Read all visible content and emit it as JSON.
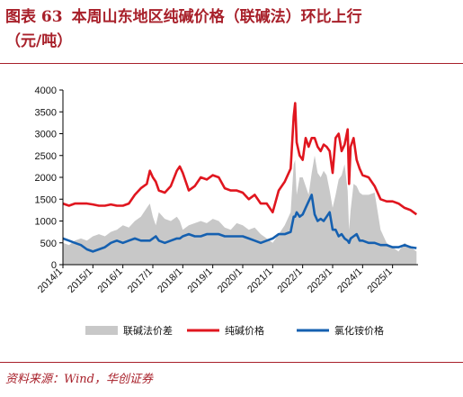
{
  "figure": {
    "label": "图表 63",
    "title_line1": "本周山东地区纯碱价格（联碱法）环比上行",
    "title_line2": "（元/吨）"
  },
  "source": "资料来源：Wind，华创证券",
  "colors": {
    "area": "#c8c8c8",
    "soda": "#e0161f",
    "nh4cl": "#1560b0",
    "brand": "#a8202a"
  },
  "chart_data": {
    "type": "line",
    "title": "",
    "xlabel": "",
    "ylabel": "",
    "ylim": [
      0,
      4000
    ],
    "yticks": [
      0,
      500,
      1000,
      1500,
      2000,
      2500,
      3000,
      3500,
      4000
    ],
    "xlim": [
      2014.0,
      2025.85
    ],
    "xticks": [
      {
        "x": 2014.0,
        "label": "2014/1"
      },
      {
        "x": 2015.0,
        "label": "2015/1"
      },
      {
        "x": 2016.0,
        "label": "2016/1"
      },
      {
        "x": 2017.0,
        "label": "2017/1"
      },
      {
        "x": 2018.0,
        "label": "2018/1"
      },
      {
        "x": 2019.0,
        "label": "2019/1"
      },
      {
        "x": 2020.0,
        "label": "2020/1"
      },
      {
        "x": 2021.0,
        "label": "2021/1"
      },
      {
        "x": 2022.0,
        "label": "2022/1"
      },
      {
        "x": 2023.0,
        "label": "2023/1"
      },
      {
        "x": 2024.0,
        "label": "2024/1"
      },
      {
        "x": 2025.0,
        "label": "2025/1"
      }
    ],
    "grid": false,
    "legend_position": "bottom",
    "x": [
      2014.0,
      2014.2,
      2014.4,
      2014.6,
      2014.8,
      2015.0,
      2015.2,
      2015.4,
      2015.6,
      2015.8,
      2016.0,
      2016.2,
      2016.4,
      2016.6,
      2016.8,
      2016.9,
      2017.0,
      2017.1,
      2017.2,
      2017.4,
      2017.6,
      2017.8,
      2017.9,
      2018.0,
      2018.2,
      2018.4,
      2018.6,
      2018.8,
      2019.0,
      2019.2,
      2019.4,
      2019.6,
      2019.8,
      2020.0,
      2020.2,
      2020.4,
      2020.6,
      2020.8,
      2021.0,
      2021.2,
      2021.4,
      2021.6,
      2021.7,
      2021.75,
      2021.8,
      2021.9,
      2022.0,
      2022.1,
      2022.2,
      2022.3,
      2022.4,
      2022.5,
      2022.6,
      2022.7,
      2022.8,
      2022.9,
      2023.0,
      2023.1,
      2023.2,
      2023.3,
      2023.4,
      2023.5,
      2023.55,
      2023.6,
      2023.7,
      2023.8,
      2023.9,
      2024.0,
      2024.2,
      2024.4,
      2024.6,
      2024.8,
      2025.0,
      2025.2,
      2025.4,
      2025.6,
      2025.8
    ],
    "series": [
      {
        "name": "联碱法价差",
        "kind": "area",
        "values": [
          500,
          450,
          550,
          600,
          550,
          650,
          700,
          650,
          750,
          800,
          900,
          850,
          1000,
          1100,
          1300,
          1400,
          1100,
          900,
          1200,
          1050,
          1000,
          1100,
          1000,
          800,
          900,
          950,
          1000,
          950,
          1050,
          1000,
          850,
          800,
          950,
          900,
          800,
          850,
          700,
          600,
          500,
          700,
          900,
          1200,
          2300,
          2400,
          1600,
          2000,
          2000,
          1800,
          1600,
          2100,
          2500,
          2100,
          2000,
          2150,
          2050,
          1700,
          1300,
          1600,
          1950,
          2050,
          2300,
          1700,
          800,
          1250,
          1850,
          1800,
          1650,
          1600,
          1600,
          1650,
          800,
          500,
          400,
          300,
          500,
          400,
          300
        ]
      },
      {
        "name": "纯碱价格",
        "kind": "line",
        "values": [
          1400,
          1350,
          1400,
          1400,
          1400,
          1380,
          1350,
          1350,
          1380,
          1350,
          1350,
          1400,
          1600,
          1750,
          1850,
          2150,
          2000,
          1900,
          1700,
          1650,
          1800,
          2150,
          2250,
          2100,
          1700,
          1800,
          2000,
          1950,
          2050,
          2000,
          1750,
          1700,
          1700,
          1650,
          1500,
          1600,
          1400,
          1400,
          1200,
          1700,
          1900,
          2200,
          3400,
          3700,
          2800,
          2500,
          2400,
          2900,
          2700,
          2900,
          2900,
          2700,
          2600,
          2750,
          2700,
          2600,
          2100,
          2900,
          3000,
          2600,
          2750,
          3100,
          1850,
          2700,
          2900,
          2400,
          2200,
          2050,
          2000,
          1800,
          1500,
          1450,
          1450,
          1400,
          1300,
          1250,
          1150
        ]
      },
      {
        "name": "氯化铵价格",
        "kind": "line",
        "values": [
          600,
          550,
          500,
          450,
          350,
          300,
          350,
          400,
          500,
          550,
          500,
          550,
          600,
          550,
          550,
          550,
          600,
          650,
          550,
          500,
          550,
          600,
          600,
          650,
          700,
          650,
          650,
          700,
          700,
          700,
          650,
          650,
          650,
          650,
          600,
          550,
          500,
          550,
          600,
          700,
          700,
          750,
          1100,
          1100,
          1200,
          1100,
          1150,
          1300,
          1450,
          1600,
          1150,
          1000,
          1050,
          1000,
          1100,
          1200,
          800,
          800,
          650,
          700,
          600,
          550,
          500,
          600,
          650,
          700,
          550,
          550,
          500,
          500,
          450,
          450,
          400,
          400,
          450,
          400,
          380
        ]
      }
    ]
  }
}
